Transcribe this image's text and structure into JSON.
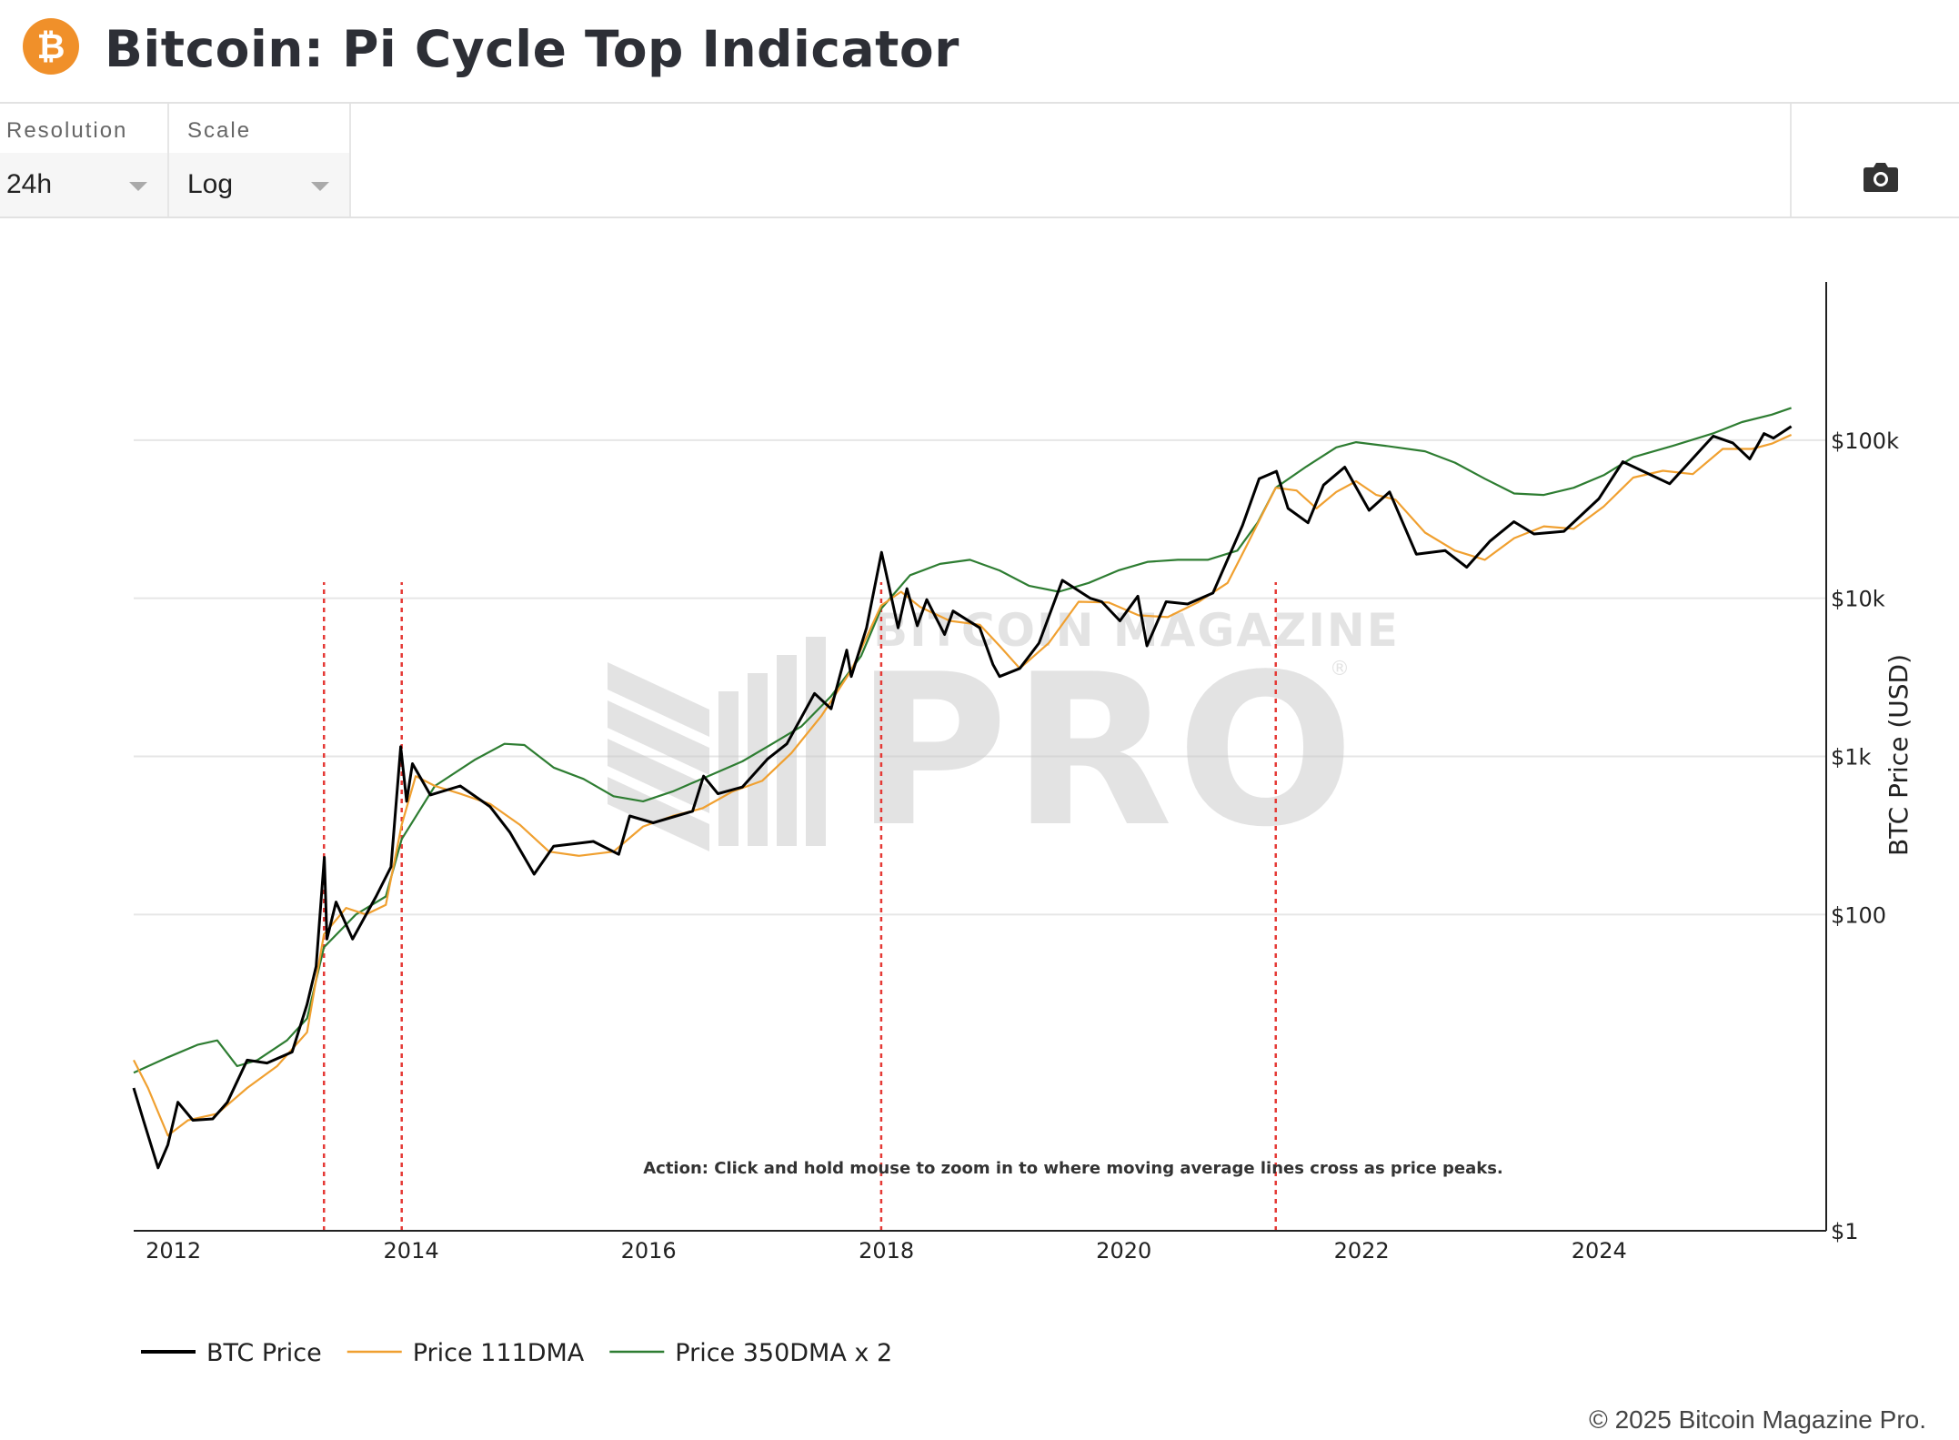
{
  "header": {
    "logo_symbol": "₿",
    "logo_icon": "bitcoin-icon",
    "title": "Bitcoin: Pi Cycle Top Indicator"
  },
  "toolbar": {
    "resolution_label": "Resolution",
    "resolution_value": "24h",
    "scale_label": "Scale",
    "scale_value": "Log",
    "camera_icon": "camera-icon"
  },
  "footer": {
    "copyright": "© 2025 Bitcoin Magazine Pro."
  },
  "watermark": {
    "line1": "BITCOIN MAGAZINE",
    "line2": "PRO",
    "mark": "®"
  },
  "colors": {
    "btc": "#000000",
    "dma111": "#f0a030",
    "dma350x2": "#2e7d32",
    "cross": "#e53935",
    "grid": "#e6e6e6",
    "logo": "#f0902a"
  },
  "chart_data": {
    "type": "line",
    "title": "Bitcoin: Pi Cycle Top Indicator",
    "xlabel": "",
    "ylabel": "BTC Price (USD)",
    "yscale": "log",
    "ylim": [
      1,
      1000000
    ],
    "xlim": [
      "2011-09-01",
      "2025-08-15"
    ],
    "x_ticks": [
      "2012",
      "2014",
      "2016",
      "2018",
      "2020",
      "2022",
      "2024"
    ],
    "y_ticks": [
      {
        "value": 1,
        "label": "$1"
      },
      {
        "value": 100,
        "label": "$100"
      },
      {
        "value": 1000,
        "label": "$1k"
      },
      {
        "value": 10000,
        "label": "$10k"
      },
      {
        "value": 100000,
        "label": "$100k"
      }
    ],
    "grid": true,
    "legend_position": "bottom-left",
    "annotation": "Action: Click and hold mouse to zoom in to where moving average lines cross as price peaks.",
    "cross_dates": [
      "2013-04-08",
      "2013-12-03",
      "2017-12-16",
      "2021-04-12"
    ],
    "series": [
      {
        "name": "BTC Price",
        "color": "#000000",
        "points": [
          [
            "2011-09-01",
            8.0
          ],
          [
            "2011-10-01",
            5.0
          ],
          [
            "2011-11-15",
            2.5
          ],
          [
            "2011-12-15",
            3.5
          ],
          [
            "2012-01-15",
            6.5
          ],
          [
            "2012-03-01",
            5.0
          ],
          [
            "2012-05-01",
            5.1
          ],
          [
            "2012-06-15",
            6.5
          ],
          [
            "2012-08-15",
            12.0
          ],
          [
            "2012-10-15",
            11.5
          ],
          [
            "2012-12-31",
            13.5
          ],
          [
            "2013-02-15",
            27.0
          ],
          [
            "2013-03-15",
            47.0
          ],
          [
            "2013-04-09",
            230.0
          ],
          [
            "2013-04-17",
            70.0
          ],
          [
            "2013-05-15",
            120.0
          ],
          [
            "2013-07-05",
            70.0
          ],
          [
            "2013-09-15",
            130.0
          ],
          [
            "2013-10-31",
            200.0
          ],
          [
            "2013-11-30",
            1150.0
          ],
          [
            "2013-12-18",
            520.0
          ],
          [
            "2014-01-05",
            900.0
          ],
          [
            "2014-03-01",
            570.0
          ],
          [
            "2014-06-01",
            650.0
          ],
          [
            "2014-09-01",
            480.0
          ],
          [
            "2014-11-01",
            330.0
          ],
          [
            "2015-01-14",
            180.0
          ],
          [
            "2015-03-15",
            270.0
          ],
          [
            "2015-07-15",
            290.0
          ],
          [
            "2015-10-01",
            240.0
          ],
          [
            "2015-11-04",
            420.0
          ],
          [
            "2016-01-15",
            380.0
          ],
          [
            "2016-05-15",
            450.0
          ],
          [
            "2016-06-18",
            750.0
          ],
          [
            "2016-08-01",
            580.0
          ],
          [
            "2016-10-15",
            640.0
          ],
          [
            "2016-12-31",
            960.0
          ],
          [
            "2017-03-01",
            1200.0
          ],
          [
            "2017-05-25",
            2500.0
          ],
          [
            "2017-07-15",
            2000.0
          ],
          [
            "2017-09-01",
            4700.0
          ],
          [
            "2017-09-15",
            3200.0
          ],
          [
            "2017-11-01",
            6500.0
          ],
          [
            "2017-12-17",
            19500.0
          ],
          [
            "2018-02-06",
            6500.0
          ],
          [
            "2018-03-05",
            11500.0
          ],
          [
            "2018-04-06",
            6700.0
          ],
          [
            "2018-05-05",
            9800.0
          ],
          [
            "2018-06-29",
            5900.0
          ],
          [
            "2018-07-25",
            8300.0
          ],
          [
            "2018-10-15",
            6500.0
          ],
          [
            "2018-11-25",
            3800.0
          ],
          [
            "2018-12-15",
            3200.0
          ],
          [
            "2019-02-15",
            3600.0
          ],
          [
            "2019-04-15",
            5200.0
          ],
          [
            "2019-06-26",
            13000.0
          ],
          [
            "2019-09-20",
            10000.0
          ],
          [
            "2019-10-25",
            9500.0
          ],
          [
            "2019-12-20",
            7200.0
          ],
          [
            "2020-02-13",
            10300.0
          ],
          [
            "2020-03-12",
            5000.0
          ],
          [
            "2020-05-10",
            9500.0
          ],
          [
            "2020-07-15",
            9200.0
          ],
          [
            "2020-10-01",
            10800.0
          ],
          [
            "2020-12-31",
            29000.0
          ],
          [
            "2021-02-20",
            57000.0
          ],
          [
            "2021-04-14",
            63500.0
          ],
          [
            "2021-05-20",
            37000.0
          ],
          [
            "2021-07-20",
            30000.0
          ],
          [
            "2021-09-06",
            52000.0
          ],
          [
            "2021-11-10",
            67500.0
          ],
          [
            "2022-01-24",
            36000.0
          ],
          [
            "2022-03-28",
            47000.0
          ],
          [
            "2022-06-18",
            19000.0
          ],
          [
            "2022-09-15",
            20000.0
          ],
          [
            "2022-11-20",
            15700.0
          ],
          [
            "2023-01-31",
            23000.0
          ],
          [
            "2023-04-14",
            30500.0
          ],
          [
            "2023-06-15",
            25500.0
          ],
          [
            "2023-09-15",
            26500.0
          ],
          [
            "2023-12-31",
            42500.0
          ],
          [
            "2024-03-14",
            73000.0
          ],
          [
            "2024-08-05",
            53000.0
          ],
          [
            "2024-11-15",
            90000.0
          ],
          [
            "2024-12-17",
            106000.0
          ],
          [
            "2025-02-15",
            96000.0
          ],
          [
            "2025-04-08",
            76000.0
          ],
          [
            "2025-05-22",
            110000.0
          ],
          [
            "2025-06-20",
            103000.0
          ],
          [
            "2025-08-14",
            122000.0
          ]
        ]
      },
      {
        "name": "Price 111DMA",
        "color": "#f0a030",
        "points": [
          [
            "2011-09-01",
            12.0
          ],
          [
            "2011-10-15",
            8.0
          ],
          [
            "2011-12-15",
            4.0
          ],
          [
            "2012-02-15",
            5.0
          ],
          [
            "2012-05-15",
            5.5
          ],
          [
            "2012-08-15",
            8.0
          ],
          [
            "2012-11-15",
            11.0
          ],
          [
            "2013-02-15",
            18.0
          ],
          [
            "2013-04-08",
            75.0
          ],
          [
            "2013-06-15",
            110.0
          ],
          [
            "2013-08-15",
            100.0
          ],
          [
            "2013-10-15",
            115.0
          ],
          [
            "2013-12-03",
            370.0
          ],
          [
            "2014-01-15",
            750.0
          ],
          [
            "2014-03-15",
            650.0
          ],
          [
            "2014-06-01",
            580.0
          ],
          [
            "2014-09-01",
            500.0
          ],
          [
            "2014-12-01",
            370.0
          ],
          [
            "2015-03-01",
            250.0
          ],
          [
            "2015-06-01",
            235.0
          ],
          [
            "2015-09-15",
            250.0
          ],
          [
            "2015-12-15",
            360.0
          ],
          [
            "2016-03-15",
            420.0
          ],
          [
            "2016-06-15",
            470.0
          ],
          [
            "2016-09-15",
            600.0
          ],
          [
            "2016-12-15",
            700.0
          ],
          [
            "2017-03-15",
            1050.0
          ],
          [
            "2017-06-15",
            1800.0
          ],
          [
            "2017-09-15",
            3500.0
          ],
          [
            "2017-12-16",
            9000.0
          ],
          [
            "2018-02-15",
            11000.0
          ],
          [
            "2018-04-15",
            8800.0
          ],
          [
            "2018-07-15",
            7200.0
          ],
          [
            "2018-10-15",
            6800.0
          ],
          [
            "2018-12-15",
            5000.0
          ],
          [
            "2019-02-15",
            3600.0
          ],
          [
            "2019-05-15",
            5200.0
          ],
          [
            "2019-08-15",
            9500.0
          ],
          [
            "2019-11-15",
            9400.0
          ],
          [
            "2020-02-15",
            7800.0
          ],
          [
            "2020-05-15",
            7600.0
          ],
          [
            "2020-08-15",
            9400.0
          ],
          [
            "2020-11-15",
            12500.0
          ],
          [
            "2021-01-15",
            22000.0
          ],
          [
            "2021-04-12",
            50000.0
          ],
          [
            "2021-06-15",
            48000.0
          ],
          [
            "2021-08-15",
            37000.0
          ],
          [
            "2021-10-15",
            47000.0
          ],
          [
            "2021-12-15",
            55000.0
          ],
          [
            "2022-02-15",
            45000.0
          ],
          [
            "2022-04-15",
            42000.0
          ],
          [
            "2022-07-15",
            26000.0
          ],
          [
            "2022-10-15",
            20000.0
          ],
          [
            "2023-01-15",
            17500.0
          ],
          [
            "2023-04-15",
            24000.0
          ],
          [
            "2023-07-15",
            28500.0
          ],
          [
            "2023-10-15",
            27500.0
          ],
          [
            "2024-01-15",
            38000.0
          ],
          [
            "2024-04-15",
            58000.0
          ],
          [
            "2024-07-15",
            64000.0
          ],
          [
            "2024-10-15",
            61000.0
          ],
          [
            "2025-01-15",
            88000.0
          ],
          [
            "2025-04-15",
            88000.0
          ],
          [
            "2025-06-15",
            95000.0
          ],
          [
            "2025-08-14",
            108000.0
          ]
        ]
      },
      {
        "name": "Price 350DMA x 2",
        "color": "#2e7d32",
        "points": [
          [
            "2011-09-01",
            10.0
          ],
          [
            "2011-12-15",
            12.5
          ],
          [
            "2012-03-15",
            15.0
          ],
          [
            "2012-05-15",
            16.0
          ],
          [
            "2012-07-15",
            11.0
          ],
          [
            "2012-09-15",
            12.0
          ],
          [
            "2012-12-15",
            16.0
          ],
          [
            "2013-02-15",
            22.0
          ],
          [
            "2013-04-08",
            62.0
          ],
          [
            "2013-07-15",
            100.0
          ],
          [
            "2013-10-15",
            130.0
          ],
          [
            "2013-12-03",
            300.0
          ],
          [
            "2014-03-15",
            650.0
          ],
          [
            "2014-07-15",
            950.0
          ],
          [
            "2014-10-15",
            1200.0
          ],
          [
            "2014-12-15",
            1180.0
          ],
          [
            "2015-03-15",
            850.0
          ],
          [
            "2015-06-15",
            720.0
          ],
          [
            "2015-09-15",
            560.0
          ],
          [
            "2015-12-15",
            520.0
          ],
          [
            "2016-03-15",
            600.0
          ],
          [
            "2016-07-15",
            770.0
          ],
          [
            "2016-10-15",
            930.0
          ],
          [
            "2017-01-15",
            1200.0
          ],
          [
            "2017-04-15",
            1550.0
          ],
          [
            "2017-07-15",
            2400.0
          ],
          [
            "2017-10-15",
            4300.0
          ],
          [
            "2017-12-16",
            8600.0
          ],
          [
            "2018-03-15",
            14000.0
          ],
          [
            "2018-06-15",
            16500.0
          ],
          [
            "2018-09-15",
            17500.0
          ],
          [
            "2018-12-15",
            15000.0
          ],
          [
            "2019-03-15",
            12000.0
          ],
          [
            "2019-06-15",
            11000.0
          ],
          [
            "2019-09-15",
            12500.0
          ],
          [
            "2019-12-15",
            15000.0
          ],
          [
            "2020-03-15",
            17000.0
          ],
          [
            "2020-06-15",
            17500.0
          ],
          [
            "2020-09-15",
            17500.0
          ],
          [
            "2020-12-15",
            20000.0
          ],
          [
            "2021-02-15",
            30000.0
          ],
          [
            "2021-04-12",
            50000.0
          ],
          [
            "2021-07-15",
            68000.0
          ],
          [
            "2021-10-15",
            90000.0
          ],
          [
            "2021-12-15",
            97000.0
          ],
          [
            "2022-03-15",
            92000.0
          ],
          [
            "2022-07-15",
            85000.0
          ],
          [
            "2022-10-15",
            72000.0
          ],
          [
            "2023-01-15",
            57000.0
          ],
          [
            "2023-04-15",
            46000.0
          ],
          [
            "2023-07-15",
            45000.0
          ],
          [
            "2023-10-15",
            50000.0
          ],
          [
            "2024-01-15",
            60000.0
          ],
          [
            "2024-04-15",
            78000.0
          ],
          [
            "2024-08-15",
            92000.0
          ],
          [
            "2024-12-15",
            110000.0
          ],
          [
            "2025-03-15",
            130000.0
          ],
          [
            "2025-06-15",
            145000.0
          ],
          [
            "2025-08-14",
            160000.0
          ]
        ]
      }
    ]
  }
}
